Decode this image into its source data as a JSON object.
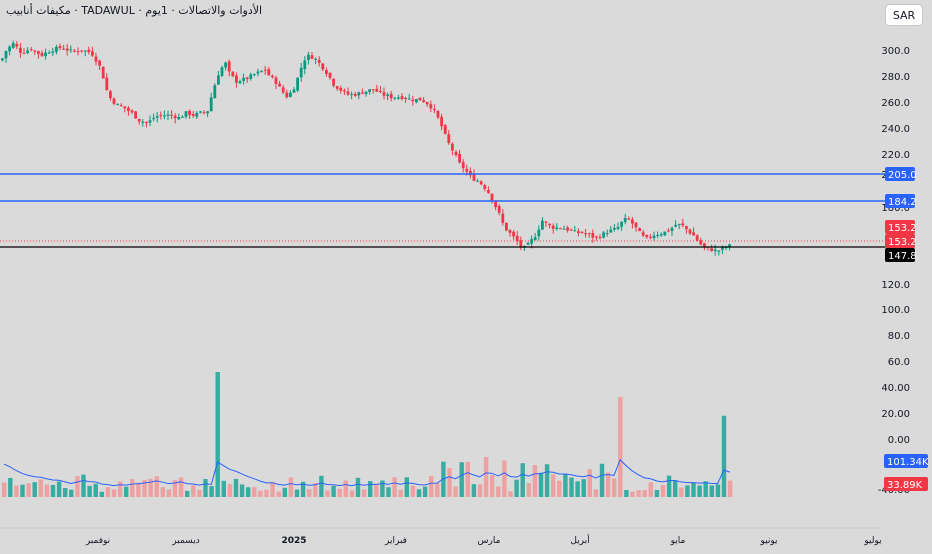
{
  "header": {
    "title": "الأدوات والاتصالات · 1يوم · TADAWUL · مكيفات أنابيب",
    "currency": "SAR"
  },
  "chart_data": {
    "type": "candlestick",
    "price_axis": {
      "ticks": [
        "300.0",
        "280.0",
        "260.0",
        "240.0",
        "220.0",
        "200.0",
        "180.0",
        "120.0",
        "100.0",
        "80.0",
        "60.0",
        "40.00",
        "20.00",
        "0.00",
        "-40.00"
      ],
      "tick_values": [
        300,
        280,
        260,
        240,
        220,
        200,
        180,
        120,
        100,
        80,
        60,
        40,
        20,
        0,
        -40
      ]
    },
    "time_axis": {
      "labels": [
        "نوفمبر",
        "ديسمبر",
        "2025",
        "فبراير",
        "مارس",
        "أبريل",
        "مايو",
        "يونيو",
        "يوليو"
      ]
    },
    "horizontal_lines": [
      {
        "value": 205.0,
        "label": "205.0",
        "color": "#2962ff"
      },
      {
        "value": 184.2,
        "label": "184.2",
        "color": "#2962ff"
      }
    ],
    "price_tags": [
      {
        "label": "153.2",
        "color": "#f23645"
      },
      {
        "label": "153.2",
        "color": "#f23645"
      },
      {
        "label": "147.8",
        "color": "#000000"
      }
    ],
    "volume_tags": [
      {
        "label": "101.34K",
        "color": "#2962ff"
      },
      {
        "label": "33.89K",
        "color": "#f23645"
      }
    ],
    "colors": {
      "up": "#089981",
      "down": "#f23645",
      "volume_ma": "#2962ff"
    },
    "close_path": [
      [
        0,
        292
      ],
      [
        5,
        300
      ],
      [
        12,
        305
      ],
      [
        20,
        298
      ],
      [
        30,
        301
      ],
      [
        40,
        296
      ],
      [
        50,
        300
      ],
      [
        60,
        302
      ],
      [
        70,
        299
      ],
      [
        80,
        300
      ],
      [
        90,
        298
      ],
      [
        95,
        292
      ],
      [
        100,
        285
      ],
      [
        104,
        272
      ],
      [
        108,
        264
      ],
      [
        115,
        258
      ],
      [
        122,
        256
      ],
      [
        130,
        252
      ],
      [
        138,
        246
      ],
      [
        146,
        244
      ],
      [
        154,
        249
      ],
      [
        160,
        250
      ],
      [
        170,
        250
      ],
      [
        178,
        248
      ],
      [
        185,
        252
      ],
      [
        192,
        250
      ],
      [
        200,
        252
      ],
      [
        206,
        253
      ],
      [
        212,
        270
      ],
      [
        218,
        284
      ],
      [
        224,
        290
      ],
      [
        228,
        282
      ],
      [
        235,
        276
      ],
      [
        245,
        278
      ],
      [
        252,
        281
      ],
      [
        258,
        283
      ],
      [
        264,
        285
      ],
      [
        268,
        280
      ],
      [
        274,
        276
      ],
      [
        280,
        269
      ],
      [
        286,
        264
      ],
      [
        292,
        270
      ],
      [
        298,
        282
      ],
      [
        302,
        292
      ],
      [
        308,
        296
      ],
      [
        314,
        293
      ],
      [
        320,
        288
      ],
      [
        326,
        282
      ],
      [
        332,
        274
      ],
      [
        338,
        270
      ],
      [
        346,
        266
      ],
      [
        355,
        266
      ],
      [
        362,
        268
      ],
      [
        372,
        270
      ],
      [
        380,
        266
      ],
      [
        390,
        264
      ],
      [
        400,
        264
      ],
      [
        410,
        262
      ],
      [
        420,
        262
      ],
      [
        428,
        258
      ],
      [
        434,
        252
      ],
      [
        440,
        242
      ],
      [
        446,
        230
      ],
      [
        452,
        222
      ],
      [
        458,
        213
      ],
      [
        464,
        208
      ],
      [
        470,
        202
      ],
      [
        476,
        200
      ],
      [
        482,
        196
      ],
      [
        488,
        190
      ],
      [
        493,
        182
      ],
      [
        498,
        174
      ],
      [
        503,
        164
      ],
      [
        508,
        160
      ],
      [
        514,
        155
      ],
      [
        519,
        150
      ],
      [
        524,
        148
      ],
      [
        530,
        154
      ],
      [
        536,
        160
      ],
      [
        540,
        170
      ],
      [
        546,
        166
      ],
      [
        552,
        164
      ],
      [
        560,
        164
      ],
      [
        568,
        162
      ],
      [
        575,
        160
      ],
      [
        582,
        160
      ],
      [
        588,
        158
      ],
      [
        594,
        156
      ],
      [
        600,
        158
      ],
      [
        606,
        161
      ],
      [
        612,
        162
      ],
      [
        618,
        165
      ],
      [
        622,
        170
      ],
      [
        628,
        170
      ],
      [
        634,
        164
      ],
      [
        640,
        158
      ],
      [
        645,
        155
      ],
      [
        650,
        158
      ],
      [
        656,
        159
      ],
      [
        662,
        160
      ],
      [
        668,
        162
      ],
      [
        674,
        166
      ],
      [
        680,
        166
      ],
      [
        686,
        162
      ],
      [
        692,
        158
      ],
      [
        698,
        152
      ],
      [
        704,
        148
      ],
      [
        710,
        147
      ],
      [
        716,
        146
      ],
      [
        722,
        148
      ],
      [
        726,
        150
      ],
      [
        730,
        150
      ]
    ],
    "volume_bars_count": 120,
    "volume_spikes": [
      {
        "x": 217,
        "value": 100
      },
      {
        "x": 616,
        "value": 80
      },
      {
        "x": 722,
        "value": 65
      }
    ]
  }
}
